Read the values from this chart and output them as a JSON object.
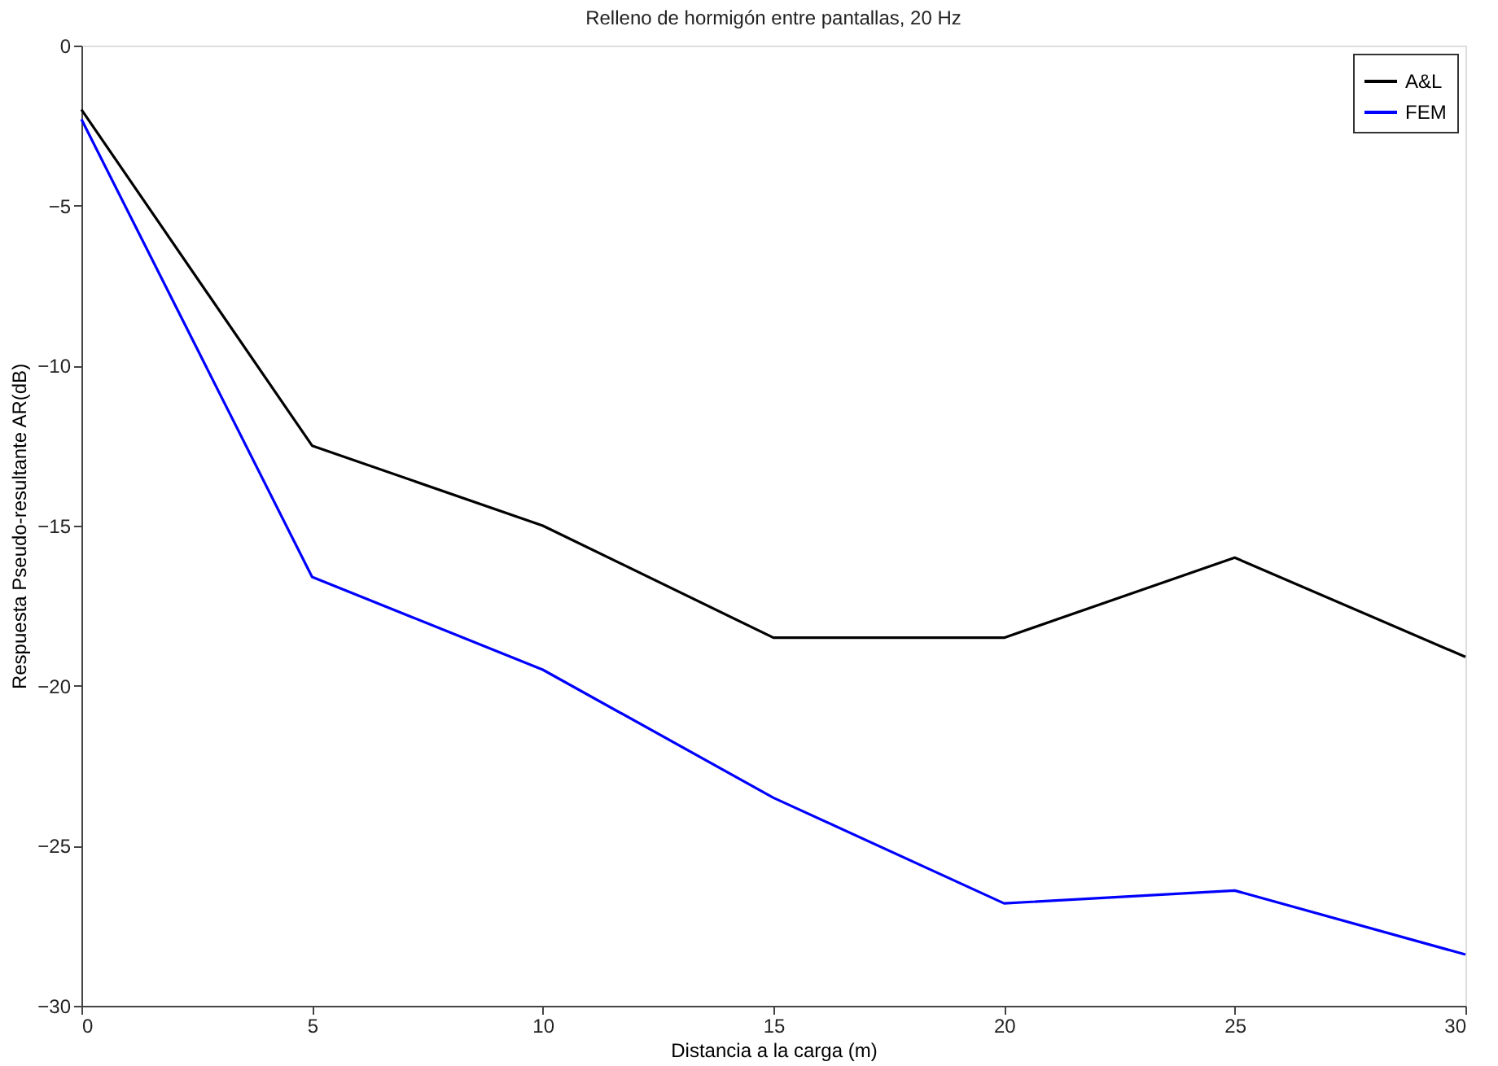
{
  "chart_data": {
    "type": "line",
    "title": "Relleno de hormigón entre pantallas, 20 Hz",
    "xlabel": "Distancia a la carga (m)",
    "ylabel": "Respuesta Pseudo-resultante AR(dB)",
    "x": [
      0,
      5,
      10,
      15,
      20,
      25,
      30
    ],
    "series": [
      {
        "name": "A&L",
        "color": "#000000",
        "values": [
          -2.0,
          -12.5,
          -15.0,
          -18.5,
          -18.5,
          -16.0,
          -19.1
        ]
      },
      {
        "name": "FEM",
        "color": "#0000ff",
        "values": [
          -2.3,
          -16.6,
          -19.5,
          -23.5,
          -26.8,
          -26.4,
          -28.4
        ]
      }
    ],
    "xlim": [
      0,
      30
    ],
    "xticks": [
      0,
      5,
      10,
      15,
      20,
      25,
      30
    ],
    "ylim": [
      -30,
      0
    ],
    "yticks": [
      -30,
      -25,
      -20,
      -15,
      -10,
      -5,
      0
    ],
    "grid": false,
    "legend": "top right",
    "marker": "none",
    "line_style": "solid"
  }
}
